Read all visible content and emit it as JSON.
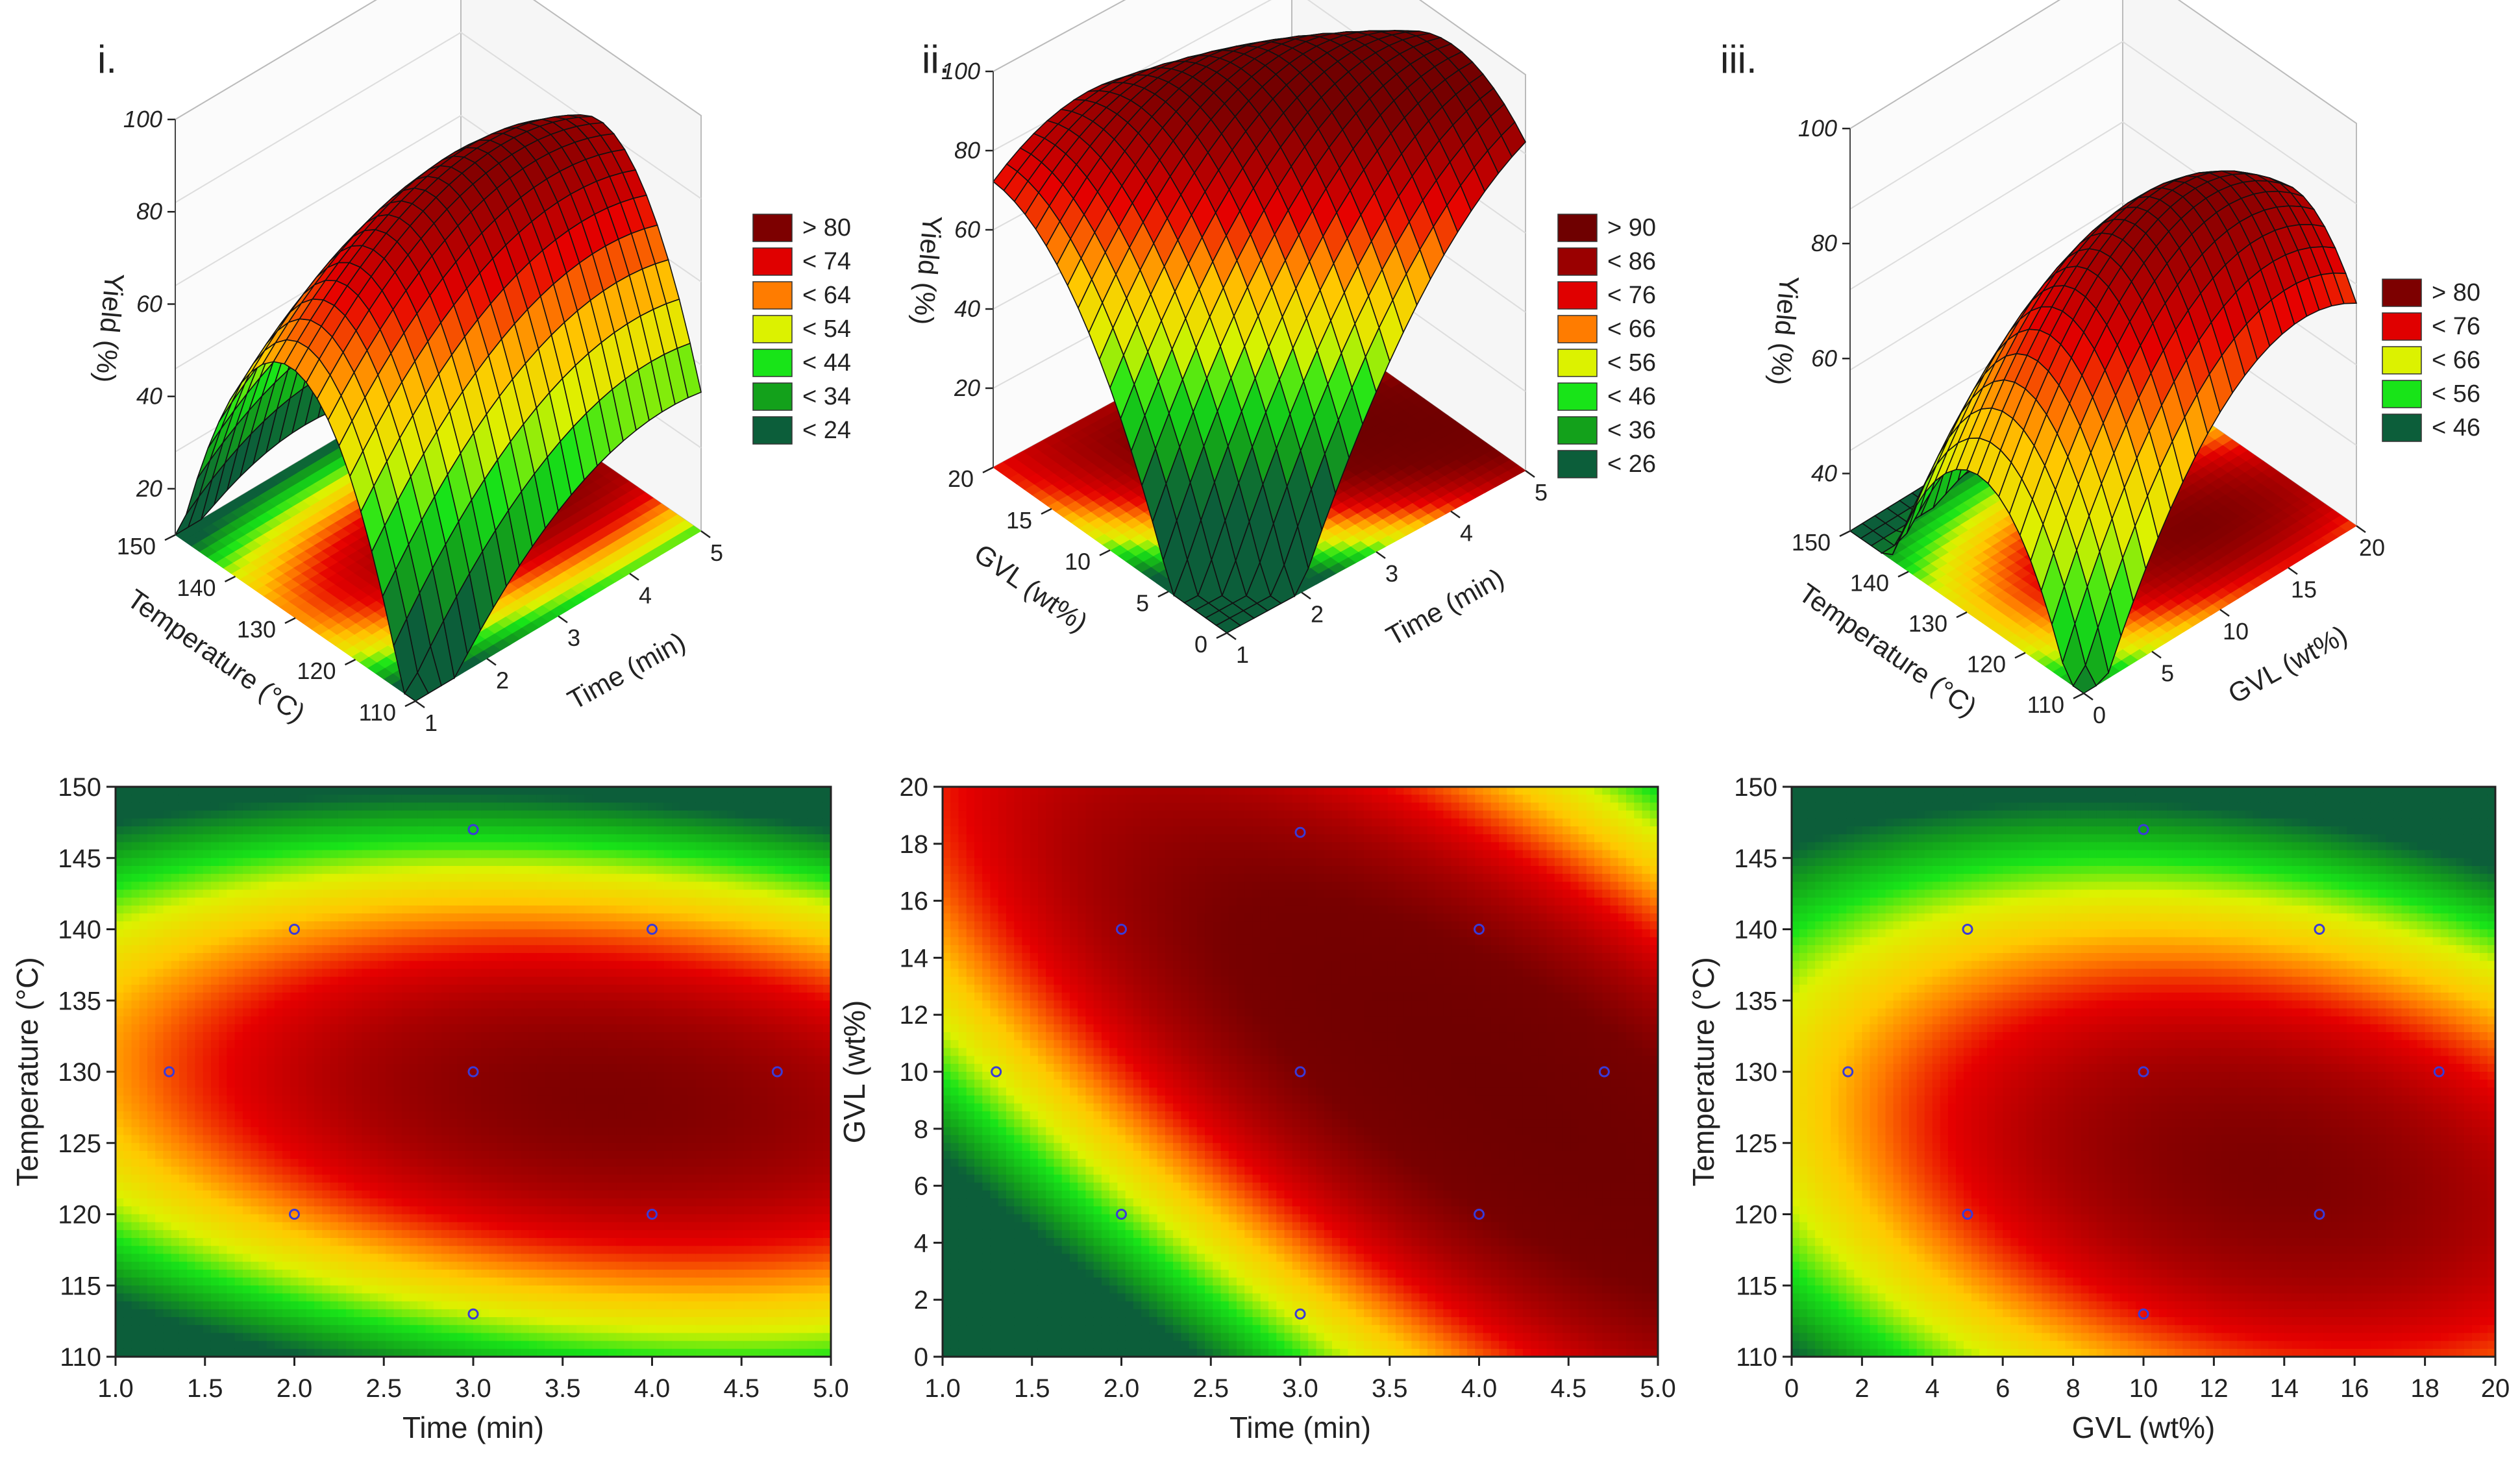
{
  "figure": {
    "panel_labels": [
      "i.",
      "ii.",
      "iii."
    ]
  },
  "legends": [
    {
      "entries": [
        "> 80",
        "< 74",
        "< 64",
        "< 54",
        "< 44",
        "< 34",
        "< 24"
      ],
      "colors": [
        "#7d0000",
        "#e00000",
        "#ff7c00",
        "#dcf200",
        "#18e418",
        "#13a11b",
        "#0c5e3a"
      ]
    },
    {
      "entries": [
        "> 90",
        "< 86",
        "< 76",
        "< 66",
        "< 56",
        "< 46",
        "< 36",
        "< 26"
      ],
      "colors": [
        "#6f0000",
        "#9a0000",
        "#e00000",
        "#ff7c00",
        "#dcf200",
        "#18e418",
        "#13a11b",
        "#0c5e3a"
      ]
    },
    {
      "entries": [
        "> 80",
        "< 76",
        "< 66",
        "< 56",
        "< 46"
      ],
      "colors": [
        "#7d0000",
        "#e00000",
        "#dcf200",
        "#18e418",
        "#0c5e3a"
      ]
    }
  ],
  "chart_data": [
    {
      "type": "surface3d",
      "panel": "i.",
      "title": "",
      "xlabel": "Time (min)",
      "ylabel": "Temperature (°C)",
      "zlabel": "Yield (%)",
      "x_ticks": [
        "1",
        "2",
        "3",
        "4",
        "5"
      ],
      "y_ticks": [
        "110",
        "120",
        "130",
        "140",
        "150"
      ],
      "z_ticks": [
        "20",
        "40",
        "60",
        "80",
        "100"
      ],
      "xlim": [
        1,
        5
      ],
      "ylim": [
        110,
        150
      ],
      "zlim": [
        10,
        100
      ],
      "model": {
        "peak": 89,
        "x_opt": 3.75,
        "y_opt": 128,
        "ax": 14,
        "ay": 62,
        "axy": 12
      },
      "legend_thresholds": [
        80,
        74,
        64,
        54,
        44,
        34,
        24
      ]
    },
    {
      "type": "surface3d",
      "panel": "ii.",
      "title": "",
      "xlabel": "Time (min)",
      "ylabel": "GVL (wt%)",
      "zlabel": "Yield (%)",
      "x_ticks": [
        "1",
        "2",
        "3",
        "4",
        "5"
      ],
      "y_ticks": [
        "0",
        "5",
        "10",
        "15",
        "20"
      ],
      "z_ticks": [
        "20",
        "40",
        "60",
        "80",
        "100"
      ],
      "xlim": [
        1,
        5
      ],
      "ylim": [
        0,
        20
      ],
      "zlim": [
        0,
        100
      ],
      "model": {
        "peak": 96,
        "x_opt": 4.2,
        "y_opt": 9,
        "ax": 24,
        "ay": 30,
        "axy": 42
      },
      "legend_thresholds": [
        90,
        86,
        76,
        66,
        56,
        46,
        36,
        26
      ]
    },
    {
      "type": "surface3d",
      "panel": "iii.",
      "title": "",
      "xlabel": "GVL (wt%)",
      "ylabel": "Temperature (°C)",
      "zlabel": "Yield (%)",
      "x_ticks": [
        "0",
        "5",
        "10",
        "15",
        "20"
      ],
      "y_ticks": [
        "110",
        "120",
        "130",
        "140",
        "150"
      ],
      "z_ticks": [
        "40",
        "60",
        "80",
        "100"
      ],
      "xlim": [
        0,
        20
      ],
      "ylim": [
        110,
        150
      ],
      "zlim": [
        30,
        100
      ],
      "model": {
        "peak": 89,
        "x_opt": 13.5,
        "y_opt": 123,
        "ax": 20,
        "ay": 44,
        "axy": 16
      },
      "legend_thresholds": [
        80,
        76,
        66,
        56,
        46
      ]
    },
    {
      "type": "contour",
      "xlabel": "Time (min)",
      "ylabel": "Temperature (°C)",
      "x_ticks": [
        "1.0",
        "1.5",
        "2.0",
        "2.5",
        "3.0",
        "3.5",
        "4.0",
        "4.5",
        "5.0"
      ],
      "y_ticks": [
        "110",
        "115",
        "120",
        "125",
        "130",
        "135",
        "140",
        "145",
        "150"
      ],
      "xlim": [
        1,
        5
      ],
      "ylim": [
        110,
        150
      ],
      "model_ref": 0,
      "design_points": [
        [
          1.3,
          130
        ],
        [
          2,
          120
        ],
        [
          2,
          140
        ],
        [
          3,
          113
        ],
        [
          3,
          130
        ],
        [
          3,
          147
        ],
        [
          4,
          120
        ],
        [
          4,
          140
        ],
        [
          4.7,
          130
        ]
      ]
    },
    {
      "type": "contour",
      "xlabel": "Time (min)",
      "ylabel": "GVL (wt%)",
      "x_ticks": [
        "1.0",
        "1.5",
        "2.0",
        "2.5",
        "3.0",
        "3.5",
        "4.0",
        "4.5",
        "5.0"
      ],
      "y_ticks": [
        "0",
        "2",
        "4",
        "6",
        "8",
        "10",
        "12",
        "14",
        "16",
        "18",
        "20"
      ],
      "xlim": [
        1,
        5
      ],
      "ylim": [
        0,
        20
      ],
      "model_ref": 1,
      "design_points": [
        [
          1.3,
          10
        ],
        [
          2,
          5
        ],
        [
          2,
          15
        ],
        [
          3,
          1.5
        ],
        [
          3,
          10
        ],
        [
          3,
          18.4
        ],
        [
          4,
          5
        ],
        [
          4,
          15
        ],
        [
          4.7,
          10
        ]
      ]
    },
    {
      "type": "contour",
      "xlabel": "GVL (wt%)",
      "ylabel": "Temperature (°C)",
      "x_ticks": [
        "0",
        "2",
        "4",
        "6",
        "8",
        "10",
        "12",
        "14",
        "16",
        "18",
        "20"
      ],
      "y_ticks": [
        "110",
        "115",
        "120",
        "125",
        "130",
        "135",
        "140",
        "145",
        "150"
      ],
      "xlim": [
        0,
        20
      ],
      "ylim": [
        110,
        150
      ],
      "model_ref": 2,
      "design_points": [
        [
          1.6,
          130
        ],
        [
          5,
          120
        ],
        [
          5,
          140
        ],
        [
          10,
          113
        ],
        [
          10,
          130
        ],
        [
          10,
          147
        ],
        [
          15,
          120
        ],
        [
          15,
          140
        ],
        [
          18.4,
          130
        ]
      ]
    }
  ]
}
